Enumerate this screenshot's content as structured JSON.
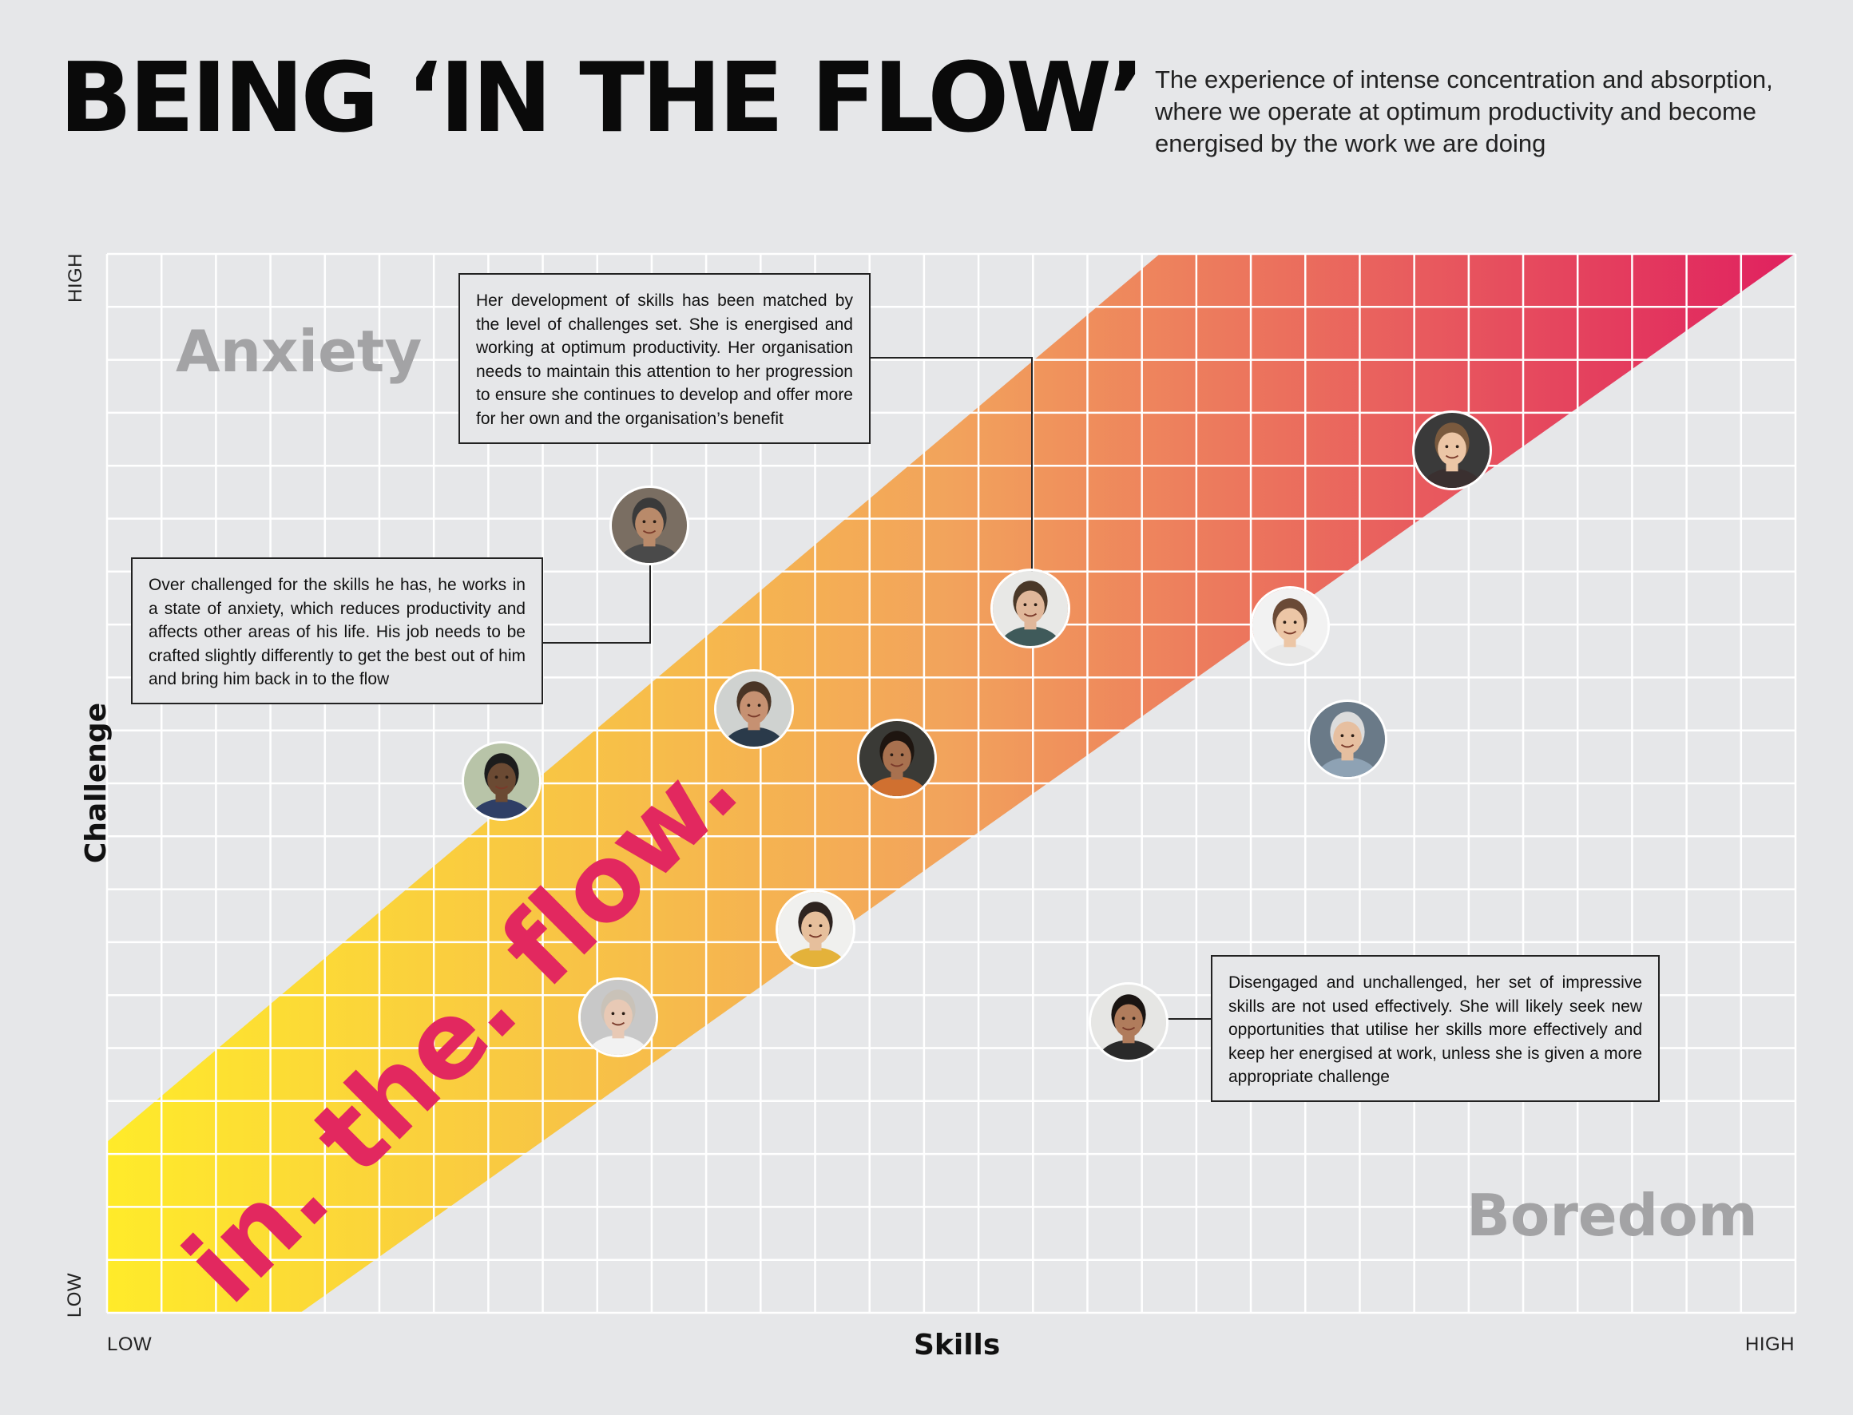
{
  "header": {
    "title": "BEING ‘IN THE FLOW’",
    "subtitle": "The experience of intense concentration and absorption, where we operate at optimum productivity and become energised by the work we are doing"
  },
  "axes": {
    "y_title": "Challenge",
    "y_low": "LOW",
    "y_high": "HIGH",
    "x_title": "Skills",
    "x_low": "LOW",
    "x_high": "HIGH"
  },
  "zones": {
    "anxiety": "Anxiety",
    "boredom": "Boredom",
    "flow": "in. the. flow."
  },
  "callouts": {
    "flow_person": "Her development of skills has been matched by the level of challenges set. She is energised and working at optimum productivity. Her organisation needs to maintain this attention to her progression to ensure she continues to develop and offer more for her own and the organisation’s benefit",
    "anxious_person": "Over challenged for the skills he has, he works in a state of anxiety, which reduces productivity and affects other areas of his life. His job needs to be crafted slightly differently to get the best out of him and bring him back in to the flow",
    "bored_person": "Disengaged and unchallenged, her set of impressive skills are not used effectively. She will likely seek new opportunities that utilise her skills more effectively and keep her energised at work, unless she is given a more appropriate challenge"
  },
  "colors": {
    "flow_start": "#ffeb2a",
    "flow_mid": "#f2a35c",
    "flow_end": "#e0215f",
    "flow_text": "#e2285f",
    "grid": "#ffffff",
    "background": "#e6e7e9",
    "zone_label": "#a3a3a5"
  },
  "people": [
    {
      "name": "avatar-man-glasses-grey-beard",
      "skin": "#b98a6a",
      "hair": "#3a3a3a",
      "shirt": "#4a4a4a",
      "bg": "#7a6e62"
    },
    {
      "name": "avatar-man-phone-suit",
      "skin": "#6b4a33",
      "hair": "#1c1c1c",
      "shirt": "#2f3f66",
      "bg": "#b8c4a8"
    },
    {
      "name": "avatar-man-glasses-smiling",
      "skin": "#c69172",
      "hair": "#4a3526",
      "shirt": "#2a3a4a",
      "bg": "#cfd2d0"
    },
    {
      "name": "avatar-man-beard-orange",
      "skin": "#a8714f",
      "hair": "#1e1510",
      "shirt": "#d07030",
      "bg": "#3a3a36"
    },
    {
      "name": "avatar-woman-short-hair",
      "skin": "#e0b79a",
      "hair": "#4a3828",
      "shirt": "#3f5a5a",
      "bg": "#e8e8e6"
    },
    {
      "name": "avatar-woman-blonde-laughing",
      "skin": "#e6bf9c",
      "hair": "#2e2420",
      "shirt": "#e4b23a",
      "bg": "#f0f0ee"
    },
    {
      "name": "avatar-older-woman-glasses",
      "skin": "#e8c9b5",
      "hair": "#c9c2b8",
      "shirt": "#f2f2f2",
      "bg": "#c8c8c8"
    },
    {
      "name": "avatar-woman-top-right",
      "skin": "#ecc6a6",
      "hair": "#7a5a3e",
      "shirt": "#3a3030",
      "bg": "#3a3a3a"
    },
    {
      "name": "avatar-woman-phone",
      "skin": "#ecc6a6",
      "hair": "#6a4a36",
      "shirt": "#e8e8e8",
      "bg": "#f2f2f2"
    },
    {
      "name": "avatar-older-man",
      "skin": "#e6bfa0",
      "hair": "#dcdcdc",
      "shirt": "#8ea2b4",
      "bg": "#6a7a88"
    },
    {
      "name": "avatar-woman-dark-hair",
      "skin": "#b07c5c",
      "hair": "#1a1412",
      "shirt": "#2a2a2a",
      "bg": "#e6e6e4"
    }
  ]
}
